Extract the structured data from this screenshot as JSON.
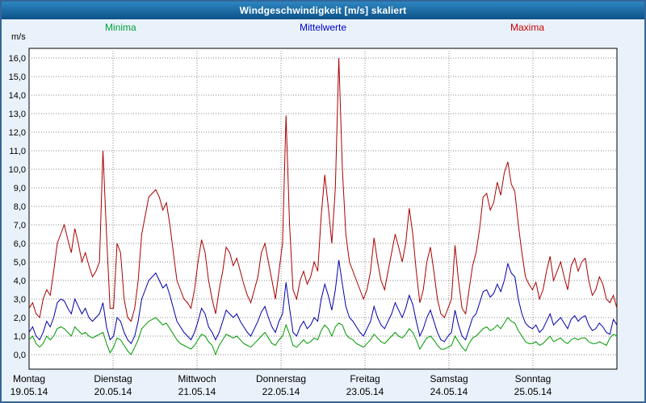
{
  "window": {
    "title": "Windgeschwindigkeit [m/s] skaliert"
  },
  "legend": [
    {
      "label": "Minima",
      "color": "#00a33c"
    },
    {
      "label": "Mittelwerte",
      "color": "#0000cc"
    },
    {
      "label": "Maxima",
      "color": "#cc0000"
    }
  ],
  "axes": {
    "y_unit": "m/s",
    "y_min": 0,
    "y_max": 16,
    "y_step": 1
  },
  "chart_data": {
    "type": "line",
    "title": "Windgeschwindigkeit [m/s] skaliert",
    "ylabel": "m/s",
    "ylim": [
      0,
      16
    ],
    "y_tick_step": 1,
    "points_per_day": 24,
    "grid": true,
    "legend_position": "top",
    "days": [
      {
        "name": "Montag",
        "date": "19.05.14"
      },
      {
        "name": "Dienstag",
        "date": "20.05.14"
      },
      {
        "name": "Mittwoch",
        "date": "21.05.14"
      },
      {
        "name": "Donnerstag",
        "date": "22.05.14"
      },
      {
        "name": "Freitag",
        "date": "23.05.14"
      },
      {
        "name": "Samstag",
        "date": "24.05.14"
      },
      {
        "name": "Sonntag",
        "date": "25.05.14"
      }
    ],
    "series": [
      {
        "name": "Maxima",
        "color": "#aa0000",
        "values": [
          2.5,
          2.8,
          2.2,
          2.0,
          3.0,
          3.5,
          3.2,
          4.5,
          6.0,
          6.5,
          7.0,
          6.2,
          5.5,
          6.8,
          6.0,
          5.0,
          5.5,
          4.8,
          4.2,
          4.5,
          5.0,
          11.0,
          6.5,
          2.5,
          2.5,
          6.0,
          5.5,
          3.0,
          2.0,
          1.8,
          2.5,
          4.0,
          6.5,
          7.5,
          8.5,
          8.7,
          8.9,
          8.5,
          7.8,
          8.2,
          7.0,
          5.5,
          4.0,
          3.5,
          3.0,
          2.8,
          2.5,
          3.5,
          5.0,
          6.2,
          5.5,
          4.0,
          3.0,
          2.2,
          3.5,
          4.5,
          5.8,
          5.5,
          4.8,
          5.2,
          4.5,
          3.8,
          3.2,
          2.8,
          3.5,
          4.2,
          5.5,
          6.0,
          5.0,
          4.0,
          3.0,
          4.5,
          6.0,
          12.9,
          7.0,
          3.5,
          3.0,
          4.0,
          4.5,
          3.8,
          4.2,
          5.0,
          4.5,
          7.5,
          9.7,
          8.0,
          6.0,
          9.0,
          16.0,
          10.0,
          6.5,
          5.0,
          4.5,
          4.0,
          3.5,
          3.0,
          3.5,
          4.5,
          6.3,
          5.0,
          4.0,
          3.5,
          4.5,
          5.5,
          6.5,
          5.8,
          5.0,
          6.0,
          7.9,
          6.5,
          4.5,
          2.8,
          3.5,
          5.0,
          5.8,
          4.5,
          3.0,
          2.2,
          2.0,
          2.5,
          3.0,
          5.9,
          4.0,
          2.5,
          2.2,
          3.5,
          4.8,
          5.5,
          6.8,
          8.5,
          8.7,
          7.8,
          8.2,
          9.3,
          8.6,
          9.8,
          10.4,
          9.2,
          8.8,
          7.0,
          5.5,
          4.2,
          3.8,
          3.5,
          3.9,
          3.0,
          3.5,
          4.5,
          5.3,
          4.0,
          4.5,
          5.0,
          4.2,
          3.5,
          4.8,
          5.2,
          4.5,
          5.0,
          5.2,
          4.0,
          3.2,
          3.5,
          4.2,
          3.8,
          3.0,
          2.8,
          3.2,
          2.5
        ]
      },
      {
        "name": "Mittelwerte",
        "color": "#0000aa",
        "values": [
          1.2,
          1.5,
          1.0,
          0.8,
          1.2,
          1.8,
          1.5,
          2.0,
          2.8,
          3.0,
          2.9,
          2.5,
          2.2,
          3.0,
          2.6,
          2.2,
          2.5,
          2.0,
          1.8,
          2.0,
          2.2,
          2.8,
          1.5,
          0.8,
          1.0,
          2.0,
          1.8,
          1.2,
          0.8,
          0.6,
          1.0,
          1.8,
          3.0,
          3.5,
          4.0,
          4.2,
          4.4,
          4.0,
          3.6,
          3.8,
          3.2,
          2.5,
          1.8,
          1.5,
          1.2,
          1.0,
          0.8,
          1.2,
          1.8,
          2.5,
          2.2,
          1.5,
          1.2,
          0.8,
          1.2,
          1.8,
          2.4,
          2.2,
          2.0,
          2.2,
          1.8,
          1.5,
          1.2,
          1.0,
          1.4,
          1.8,
          2.3,
          2.6,
          2.0,
          1.5,
          1.2,
          1.8,
          2.2,
          3.9,
          2.5,
          1.2,
          1.0,
          1.5,
          1.8,
          1.4,
          1.6,
          2.0,
          1.8,
          3.0,
          3.8,
          3.2,
          2.4,
          3.5,
          5.1,
          3.8,
          2.6,
          2.0,
          1.8,
          1.5,
          1.2,
          1.0,
          1.4,
          1.8,
          2.6,
          2.0,
          1.6,
          1.4,
          1.8,
          2.2,
          2.8,
          2.4,
          2.0,
          2.5,
          3.2,
          2.7,
          1.8,
          1.0,
          1.4,
          2.0,
          2.4,
          1.8,
          1.2,
          0.8,
          0.7,
          1.0,
          1.2,
          2.4,
          1.6,
          1.0,
          0.8,
          1.4,
          2.0,
          2.2,
          2.8,
          3.4,
          3.5,
          3.1,
          3.3,
          3.8,
          3.4,
          4.0,
          4.9,
          4.4,
          4.2,
          3.0,
          2.2,
          1.7,
          1.5,
          1.4,
          1.6,
          1.2,
          1.4,
          1.8,
          2.2,
          1.6,
          1.8,
          2.0,
          1.7,
          1.4,
          1.9,
          2.1,
          1.8,
          2.0,
          2.1,
          1.6,
          1.3,
          1.4,
          1.7,
          1.5,
          1.2,
          1.1,
          1.9,
          1.6
        ]
      },
      {
        "name": "Minima",
        "color": "#009900",
        "values": [
          0.8,
          1.0,
          0.6,
          0.4,
          0.6,
          1.0,
          0.8,
          1.0,
          1.4,
          1.5,
          1.4,
          1.2,
          1.0,
          1.5,
          1.3,
          1.1,
          1.2,
          1.0,
          0.9,
          1.0,
          1.1,
          1.2,
          0.6,
          0.1,
          0.4,
          0.9,
          0.8,
          0.5,
          0.2,
          0.0,
          0.4,
          0.8,
          1.4,
          1.6,
          1.8,
          1.9,
          2.0,
          1.8,
          1.6,
          1.7,
          1.4,
          1.1,
          0.8,
          0.6,
          0.5,
          0.4,
          0.3,
          0.5,
          0.8,
          1.1,
          1.0,
          0.7,
          0.5,
          0.0,
          0.5,
          0.8,
          1.1,
          1.0,
          0.9,
          1.0,
          0.8,
          0.6,
          0.5,
          0.4,
          0.6,
          0.8,
          1.0,
          1.2,
          0.9,
          0.6,
          0.5,
          0.8,
          1.0,
          1.6,
          1.1,
          0.5,
          0.4,
          0.6,
          0.8,
          0.6,
          0.7,
          0.9,
          0.8,
          1.3,
          1.6,
          1.4,
          1.0,
          1.5,
          1.7,
          1.6,
          1.1,
          0.9,
          0.8,
          0.6,
          0.5,
          0.4,
          0.6,
          0.8,
          1.1,
          0.9,
          0.7,
          0.6,
          0.8,
          1.0,
          1.2,
          1.0,
          0.9,
          1.1,
          1.4,
          1.2,
          0.8,
          0.3,
          0.6,
          0.9,
          1.0,
          0.8,
          0.5,
          0.3,
          0.3,
          0.4,
          0.5,
          1.0,
          0.7,
          0.4,
          0.2,
          0.6,
          0.9,
          1.0,
          1.2,
          1.4,
          1.5,
          1.3,
          1.4,
          1.6,
          1.4,
          1.7,
          2.0,
          1.8,
          1.7,
          1.3,
          1.0,
          0.7,
          0.6,
          0.6,
          0.7,
          0.5,
          0.6,
          0.8,
          1.0,
          0.7,
          0.8,
          0.9,
          0.7,
          0.6,
          0.8,
          0.9,
          0.8,
          0.9,
          0.9,
          0.7,
          0.6,
          0.6,
          0.7,
          0.6,
          0.5,
          0.9,
          1.1,
          1.0
        ]
      }
    ]
  }
}
